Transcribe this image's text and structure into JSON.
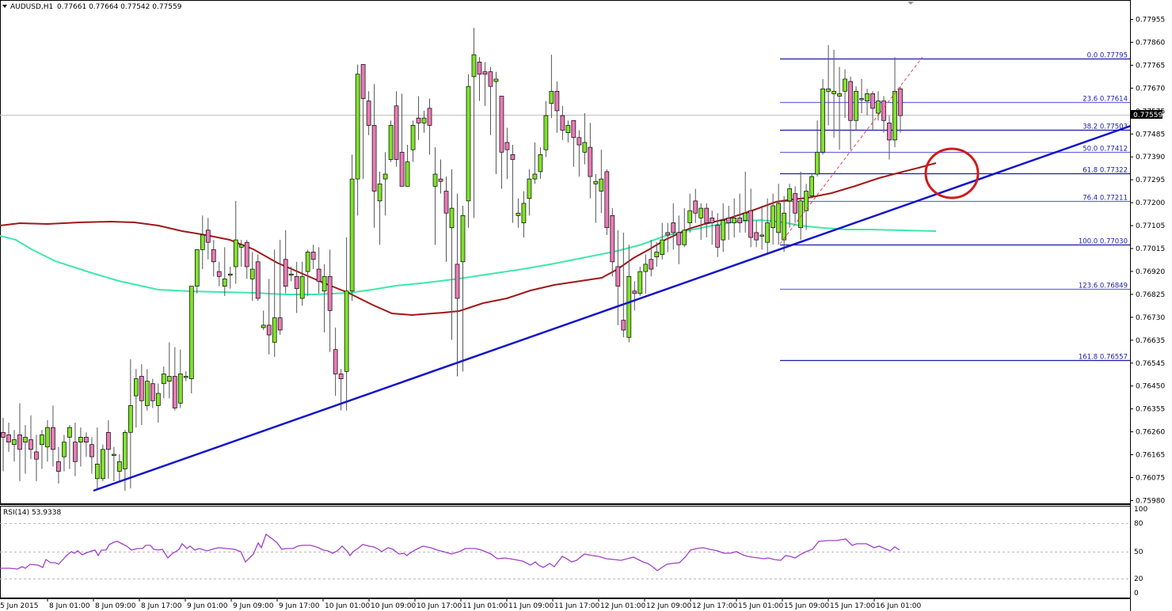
{
  "header": {
    "collapse_icon": "triangle-down-icon",
    "symbol": "AUDUSD,H1",
    "ohlc": "0.77661 0.77664 0.77542 0.77559"
  },
  "colors": {
    "bull": "#7fe22a",
    "bear": "#e87bb6",
    "wick": "#555555",
    "ma_red": "#a01818",
    "ma_green": "#3ee8a8",
    "trendline": "#1414c8",
    "fib": "#1a1aa8",
    "circle": "#d01a1a",
    "rsi": "#a040c8"
  },
  "price_axis": {
    "ticks": [
      "0.77955",
      "0.77860",
      "0.77765",
      "0.77670",
      "0.77575",
      "0.77485",
      "0.77390",
      "0.77295",
      "0.77200",
      "0.77105",
      "0.77015",
      "0.76920",
      "0.76825",
      "0.76730",
      "0.76635",
      "0.76545",
      "0.76450",
      "0.76355",
      "0.76260",
      "0.76165",
      "0.76075",
      "0.75980"
    ],
    "current_price": "0.77559"
  },
  "time_axis": {
    "ticks": [
      "5 Jun 2015",
      "8 Jun 01:00",
      "8 Jun 09:00",
      "8 Jun 17:00",
      "9 Jun 01:00",
      "9 Jun 09:00",
      "9 Jun 17:00",
      "10 Jun 01:00",
      "10 Jun 09:00",
      "10 Jun 17:00",
      "11 Jun 01:00",
      "11 Jun 09:00",
      "11 Jun 17:00",
      "12 Jun 01:00",
      "12 Jun 09:00",
      "12 Jun 17:00",
      "15 Jun 01:00",
      "15 Jun 09:00",
      "15 Jun 17:00",
      "16 Jun 01:00"
    ]
  },
  "fibonacci": [
    {
      "label": "0.0 0.77795",
      "level": "0.0",
      "price": 0.77795
    },
    {
      "label": "23.6 0.77614",
      "level": "23.6",
      "price": 0.77614
    },
    {
      "label": "38.2 0.77503",
      "level": "38.2",
      "price": 0.77503
    },
    {
      "label": "50.0 0.77412",
      "level": "50.0",
      "price": 0.77412
    },
    {
      "label": "61.8 0.77322",
      "level": "61.8",
      "price": 0.77322
    },
    {
      "label": "76.4 0.77211",
      "level": "76.4",
      "price": 0.77211
    },
    {
      "label": "100.0 0.77030",
      "level": "100.0",
      "price": 0.7703
    },
    {
      "label": "123.6 0.76849",
      "level": "123.6",
      "price": 0.76849
    },
    {
      "label": "161.8 0.76557",
      "level": "161.8",
      "price": 0.76557
    }
  ],
  "rsi": {
    "label": "RSI(14) 53.9338",
    "ticks": [
      "100",
      "80",
      "50",
      "20",
      "0"
    ]
  },
  "chart_data": {
    "type": "candlestick",
    "title": "AUDUSD,H1",
    "subtitle": "0.77661 0.77664 0.77542 0.77559",
    "xlabel": "",
    "ylabel": "",
    "ylim": [
      0.7598,
      0.77955
    ],
    "x_ticks": [
      "5 Jun 2015",
      "8 Jun 01:00",
      "8 Jun 09:00",
      "8 Jun 17:00",
      "9 Jun 01:00",
      "9 Jun 09:00",
      "9 Jun 17:00",
      "10 Jun 01:00",
      "10 Jun 09:00",
      "10 Jun 17:00",
      "11 Jun 01:00",
      "11 Jun 09:00",
      "11 Jun 17:00",
      "12 Jun 01:00",
      "12 Jun 09:00",
      "12 Jun 17:00",
      "15 Jun 01:00",
      "15 Jun 09:00",
      "15 Jun 17:00",
      "16 Jun 01:00"
    ],
    "last_close": 0.77559,
    "annotations": [
      "Ascending blue trendline from ~0.7604 (8 Jun 09:00) through ~0.7750 (right edge)",
      "Fibonacci retracement 0.77030 -> 0.77795 with levels 23.6/38.2/50.0/61.8/76.4/100/123.6/161.8",
      "Red circle highlighting confluence of 100 MA, 61.8% fib and trendline near 0.7730",
      "Red moving average (100-period) and green moving average (200-period)"
    ],
    "series": [
      {
        "name": "MA red (100)",
        "approx_values": [
          {
            "x": "5 Jun",
            "y": 0.7712
          },
          {
            "x": "8 Jun 09:00",
            "y": 0.7713
          },
          {
            "x": "9 Jun 01:00",
            "y": 0.7709
          },
          {
            "x": "9 Jun 17:00",
            "y": 0.7684
          },
          {
            "x": "10 Jun 09:00",
            "y": 0.7675
          },
          {
            "x": "11 Jun 01:00",
            "y": 0.7676
          },
          {
            "x": "11 Jun 17:00",
            "y": 0.7687
          },
          {
            "x": "12 Jun 09:00",
            "y": 0.7703
          },
          {
            "x": "15 Jun 01:00",
            "y": 0.7719
          },
          {
            "x": "16 Jun 01:00",
            "y": 0.7733
          }
        ]
      },
      {
        "name": "MA green (200)",
        "approx_values": [
          {
            "x": "5 Jun",
            "y": 0.7704
          },
          {
            "x": "8 Jun 17:00",
            "y": 0.7688
          },
          {
            "x": "9 Jun 17:00",
            "y": 0.7684
          },
          {
            "x": "10 Jun 09:00",
            "y": 0.7687
          },
          {
            "x": "11 Jun 01:00",
            "y": 0.7693
          },
          {
            "x": "11 Jun 17:00",
            "y": 0.77
          },
          {
            "x": "12 Jun 09:00",
            "y": 0.7709
          },
          {
            "x": "15 Jun 01:00",
            "y": 0.7714
          },
          {
            "x": "16 Jun 01:00",
            "y": 0.7709
          }
        ]
      },
      {
        "name": "RSI(14)",
        "ylim": [
          0,
          100
        ],
        "levels": [
          20,
          50,
          80
        ],
        "last": 53.9338
      }
    ]
  }
}
